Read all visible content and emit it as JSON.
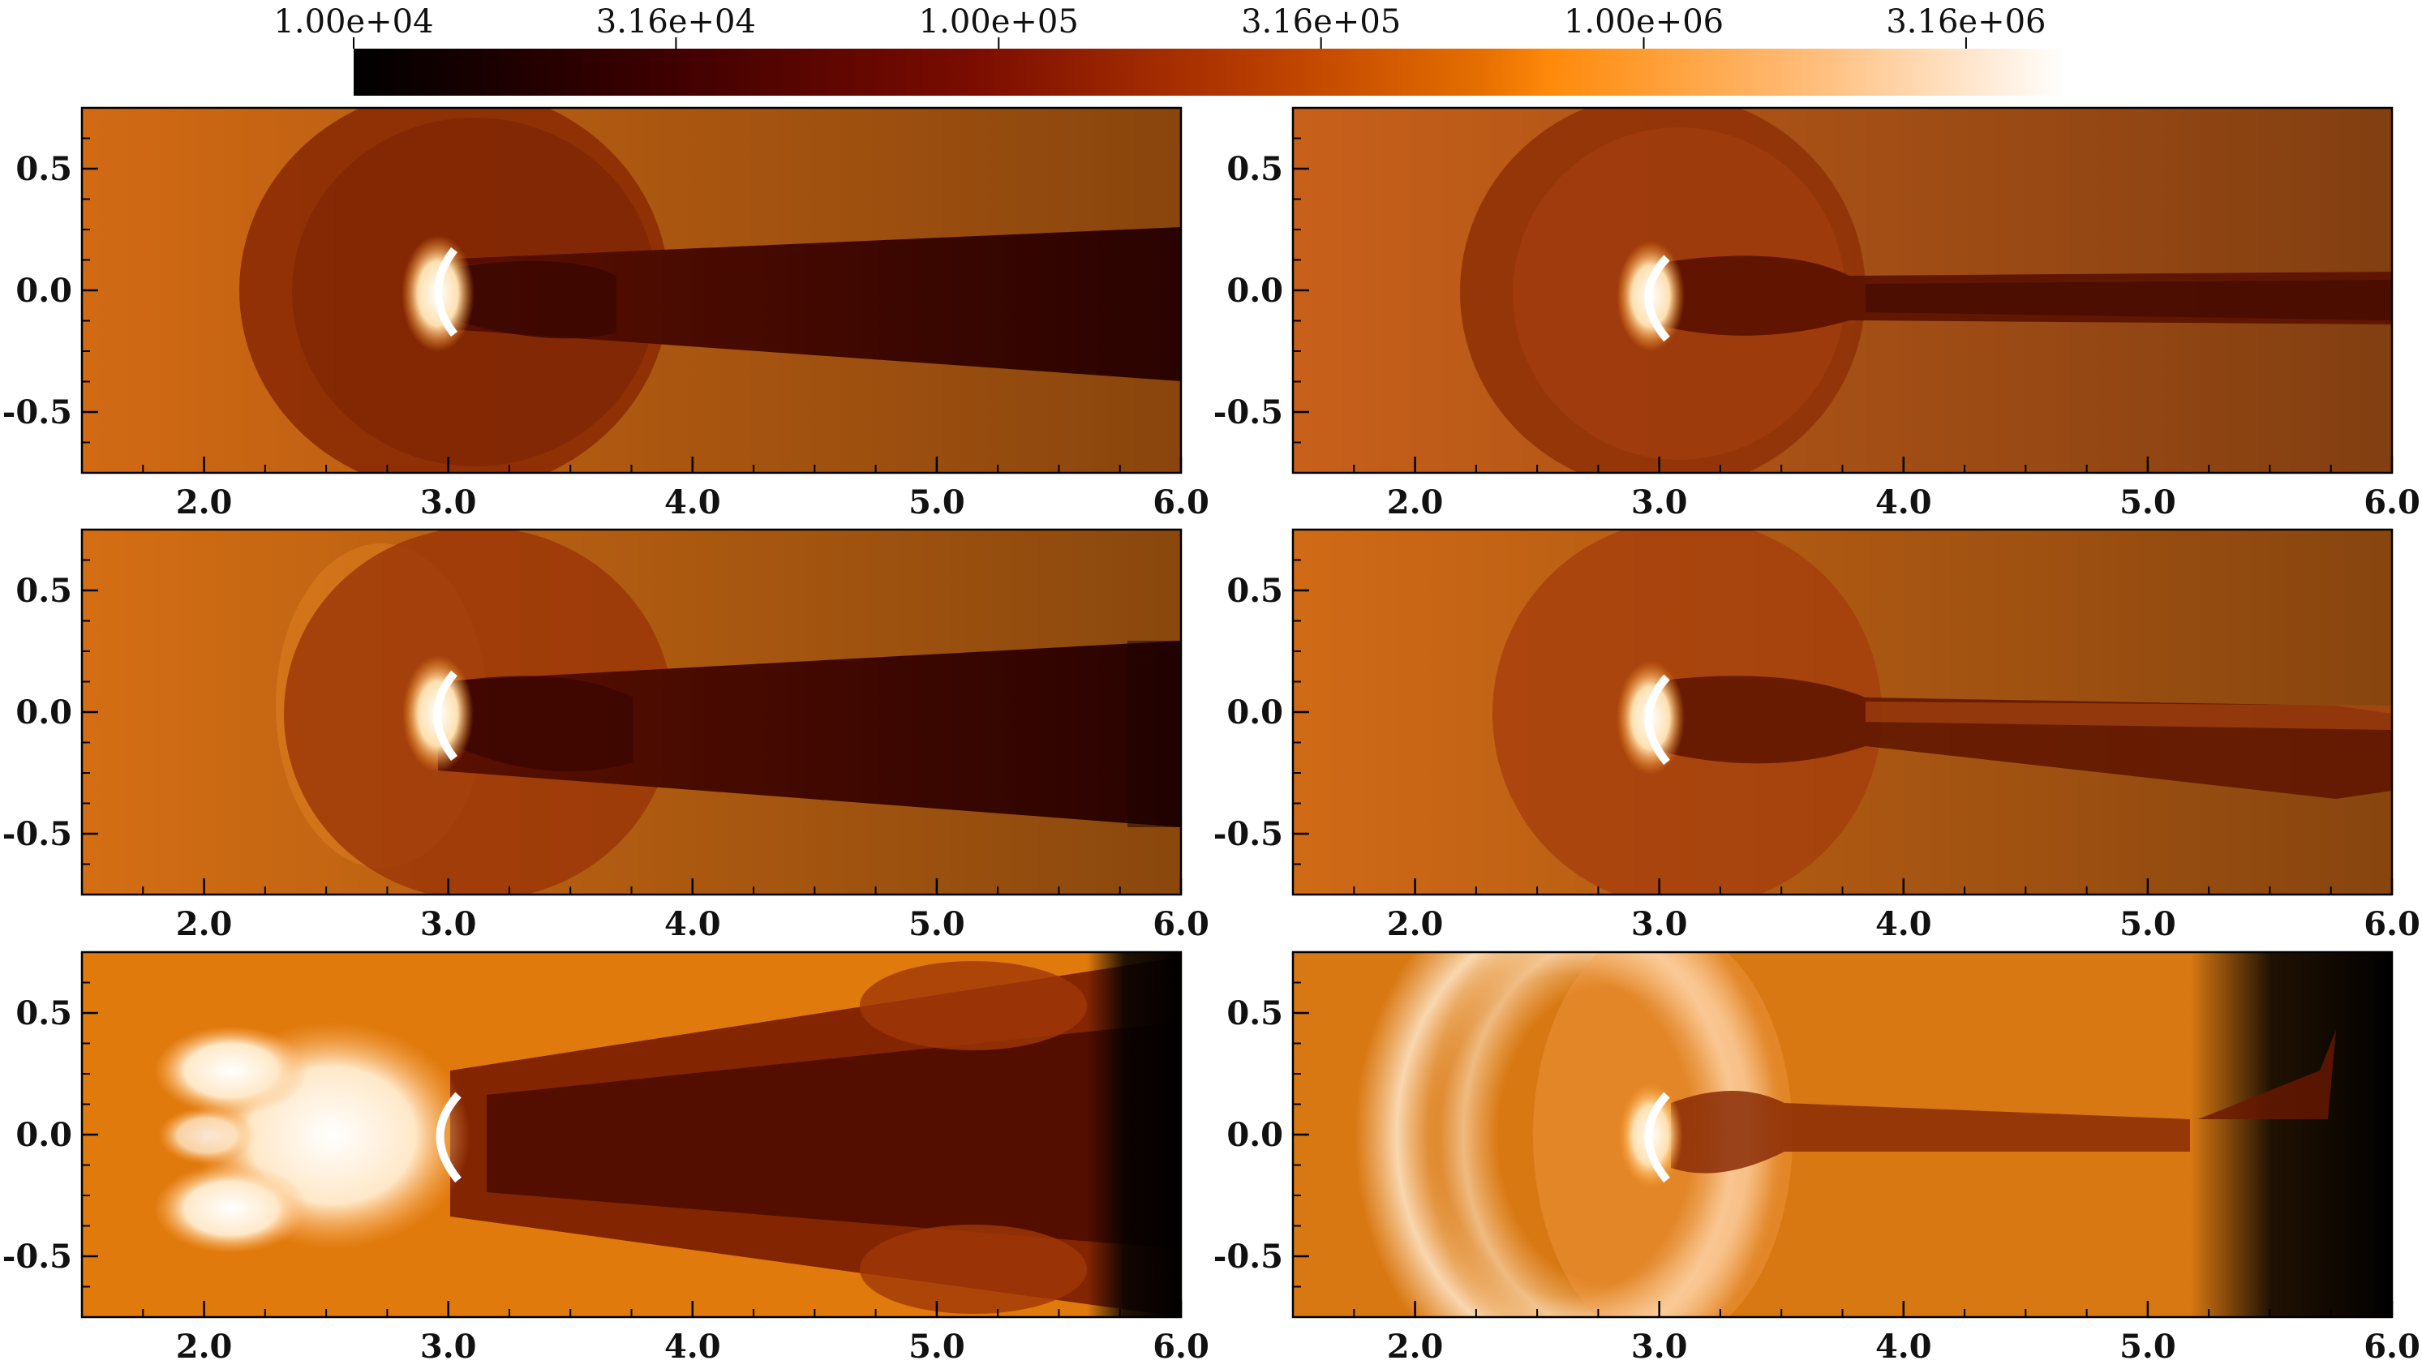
{
  "colorbar": {
    "tick_labels": [
      "1.00e+04",
      "3.16e+04",
      "1.00e+05",
      "3.16e+05",
      "1.00e+06",
      "3.16e+06"
    ],
    "tick_values": [
      10000,
      31600,
      100000,
      316000,
      1000000,
      3160000
    ],
    "range": [
      10000,
      4500000
    ],
    "scale": "log",
    "colors": [
      "#000000",
      "#3d0000",
      "#7a0c00",
      "#b53a00",
      "#e66f00",
      "#ff8a0a",
      "#ffc080",
      "#ffffff"
    ]
  },
  "axes": {
    "x_ticks": [
      2.0,
      3.0,
      4.0,
      5.0,
      6.0
    ],
    "x_tick_labels": [
      "2.0",
      "3.0",
      "4.0",
      "5.0",
      "6.0"
    ],
    "y_ticks": [
      0.5,
      0.0,
      -0.5
    ],
    "y_tick_labels": [
      "0.5",
      "0.0",
      "-0.5"
    ],
    "xlim": [
      1.5,
      6.0
    ],
    "ylim": [
      -0.75,
      0.75
    ]
  },
  "panels": [
    {
      "id": "panel-1",
      "ambient": "#d26a14"
    },
    {
      "id": "panel-2",
      "ambient": "#c8601a"
    },
    {
      "id": "panel-3",
      "ambient": "#d46e14"
    },
    {
      "id": "panel-4",
      "ambient": "#d06a16"
    },
    {
      "id": "panel-5",
      "ambient": "#e07a0c"
    },
    {
      "id": "panel-6",
      "ambient": "#d87812"
    }
  ]
}
